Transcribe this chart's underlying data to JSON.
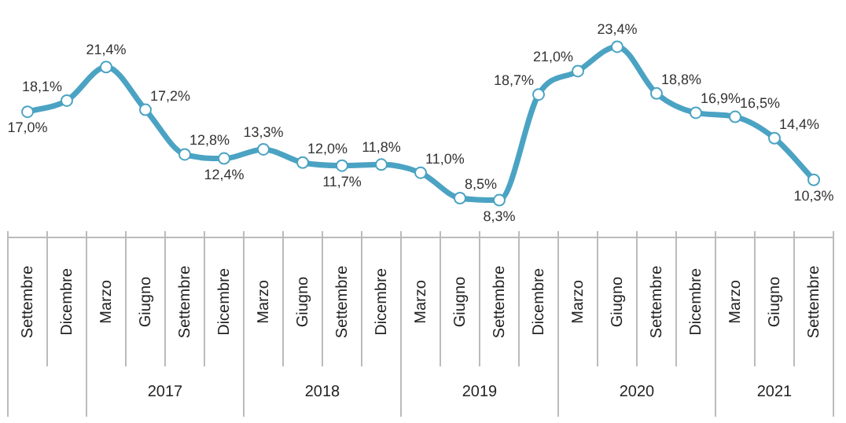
{
  "chart_data": {
    "type": "line",
    "categories": [
      "Settembre",
      "Dicembre",
      "Marzo",
      "Giugno",
      "Settembre",
      "Dicembre",
      "Marzo",
      "Giugno",
      "Settembre",
      "Dicembre",
      "Marzo",
      "Giugno",
      "Settembre",
      "Dicembre",
      "Marzo",
      "Giugno",
      "Settembre",
      "Dicembre",
      "Marzo",
      "Giugno",
      "Settembre"
    ],
    "series": [
      {
        "color": "#4ba3c3",
        "values": [
          17.0,
          18.1,
          21.4,
          17.2,
          12.8,
          12.4,
          13.3,
          12.0,
          11.7,
          11.8,
          11.0,
          8.5,
          8.3,
          18.7,
          21.0,
          23.4,
          18.8,
          16.9,
          16.5,
          14.4,
          10.3
        ],
        "value_labels": [
          "17,0%",
          "18,1%",
          "21,4%",
          "17,2%",
          "12,8%",
          "12,4%",
          "13,3%",
          "12,0%",
          "11,7%",
          "11,8%",
          "11,0%",
          "8,5%",
          "8,3%",
          "18,7%",
          "21,0%",
          "23,4%",
          "18,8%",
          "16,9%",
          "16,5%",
          "14,4%",
          "10,3%"
        ]
      }
    ],
    "annotations": [
      "2017",
      "2018",
      "2019",
      "2020",
      "2021"
    ],
    "marker": "circle",
    "legend": false,
    "grid": false
  }
}
